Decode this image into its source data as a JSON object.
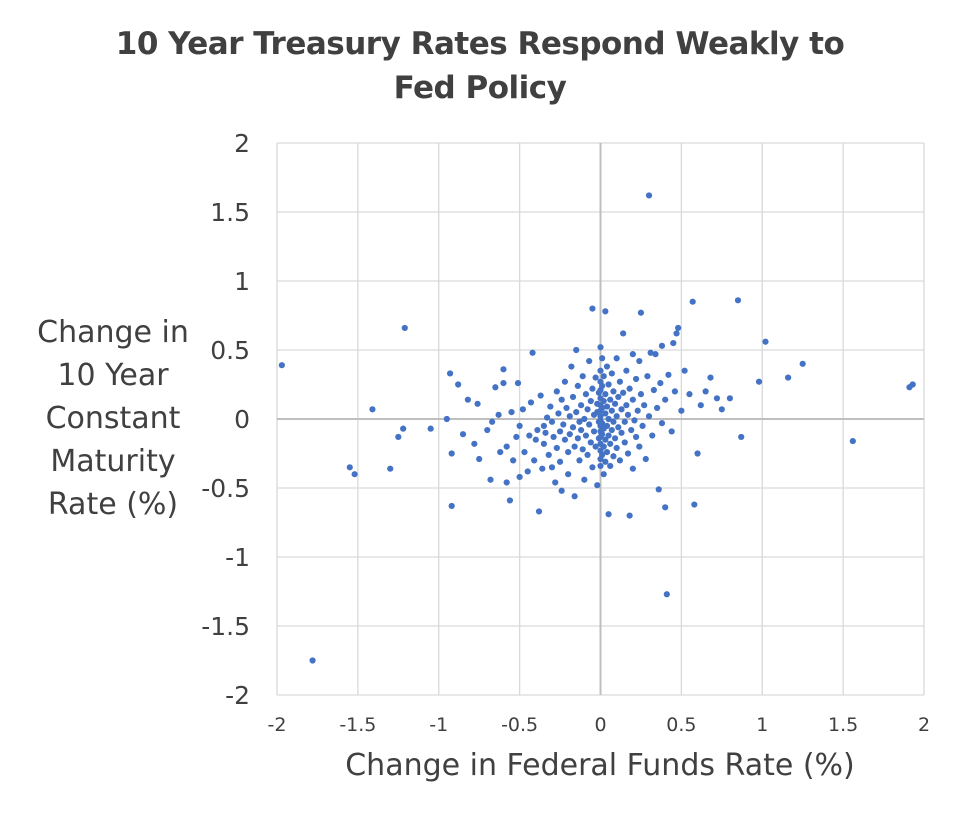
{
  "chart_data": {
    "type": "scatter",
    "title_lines": [
      "10 Year Treasury Rates Respond Weakly to",
      "Fed Policy"
    ],
    "xlabel": "Change in Federal Funds Rate (%)",
    "ylabel_lines": [
      "Change in",
      "10 Year",
      "Constant",
      "Maturity",
      "Rate (%)"
    ],
    "xlim": [
      -2,
      2
    ],
    "ylim": [
      -2,
      2
    ],
    "x_ticks": [
      "-2",
      "-1.5",
      "-1",
      "-0.5",
      "0",
      "0.5",
      "1",
      "1.5",
      "2"
    ],
    "y_ticks": [
      "2",
      "1.5",
      "1",
      "0.5",
      "0",
      "-0.5",
      "-1",
      "-1.5",
      "-2"
    ],
    "x_tick_values": [
      -2,
      -1.5,
      -1,
      -0.5,
      0,
      0.5,
      1,
      1.5,
      2
    ],
    "y_tick_values": [
      2,
      1.5,
      1,
      0.5,
      0,
      -0.5,
      -1,
      -1.5,
      -2
    ],
    "grid": true,
    "marker_color": "#4472C4",
    "points": [
      [
        -1.97,
        0.39
      ],
      [
        -1.78,
        -1.75
      ],
      [
        -1.55,
        -0.35
      ],
      [
        -1.52,
        -0.4
      ],
      [
        -1.41,
        0.07
      ],
      [
        -1.3,
        -0.36
      ],
      [
        -1.25,
        -0.13
      ],
      [
        -1.22,
        -0.07
      ],
      [
        -1.21,
        0.66
      ],
      [
        -1.05,
        -0.07
      ],
      [
        -0.95,
        0.0
      ],
      [
        -0.93,
        0.33
      ],
      [
        -0.92,
        -0.25
      ],
      [
        -0.92,
        -0.63
      ],
      [
        -0.88,
        0.25
      ],
      [
        -0.85,
        -0.11
      ],
      [
        -0.82,
        0.14
      ],
      [
        -0.78,
        -0.18
      ],
      [
        -0.76,
        0.11
      ],
      [
        -0.75,
        -0.29
      ],
      [
        -0.7,
        -0.08
      ],
      [
        -0.68,
        -0.44
      ],
      [
        -0.67,
        -0.02
      ],
      [
        -0.65,
        0.23
      ],
      [
        -0.63,
        0.03
      ],
      [
        -0.62,
        -0.24
      ],
      [
        -0.6,
        0.36
      ],
      [
        -0.6,
        0.26
      ],
      [
        -0.58,
        -0.2
      ],
      [
        -0.58,
        -0.46
      ],
      [
        -0.56,
        -0.59
      ],
      [
        -0.55,
        0.05
      ],
      [
        -0.54,
        -0.3
      ],
      [
        -0.52,
        -0.13
      ],
      [
        -0.51,
        0.26
      ],
      [
        -0.5,
        -0.42
      ],
      [
        -0.5,
        -0.05
      ],
      [
        -0.48,
        0.07
      ],
      [
        -0.47,
        -0.24
      ],
      [
        -0.45,
        -0.38
      ],
      [
        -0.44,
        -0.12
      ],
      [
        -0.43,
        0.12
      ],
      [
        -0.42,
        0.48
      ],
      [
        -0.41,
        -0.3
      ],
      [
        -0.4,
        -0.15
      ],
      [
        -0.39,
        -0.08
      ],
      [
        -0.38,
        -0.67
      ],
      [
        -0.37,
        0.17
      ],
      [
        -0.36,
        -0.36
      ],
      [
        -0.35,
        -0.05
      ],
      [
        -0.35,
        -0.18
      ],
      [
        -0.34,
        -0.1
      ],
      [
        -0.33,
        0.01
      ],
      [
        -0.32,
        -0.26
      ],
      [
        -0.31,
        0.09
      ],
      [
        -0.3,
        -0.35
      ],
      [
        -0.3,
        -0.02
      ],
      [
        -0.29,
        -0.13
      ],
      [
        -0.28,
        -0.46
      ],
      [
        -0.27,
        0.2
      ],
      [
        -0.27,
        -0.21
      ],
      [
        -0.26,
        0.04
      ],
      [
        -0.25,
        -0.09
      ],
      [
        -0.25,
        -0.31
      ],
      [
        -0.24,
        -0.52
      ],
      [
        -0.24,
        0.14
      ],
      [
        -0.23,
        -0.04
      ],
      [
        -0.22,
        -0.15
      ],
      [
        -0.22,
        0.27
      ],
      [
        -0.21,
        0.08
      ],
      [
        -0.2,
        -0.24
      ],
      [
        -0.2,
        -0.4
      ],
      [
        -0.19,
        0.02
      ],
      [
        -0.19,
        -0.11
      ],
      [
        -0.18,
        0.38
      ],
      [
        -0.17,
        -0.06
      ],
      [
        -0.17,
        0.16
      ],
      [
        -0.16,
        -0.2
      ],
      [
        -0.16,
        -0.56
      ],
      [
        -0.15,
        0.05
      ],
      [
        -0.15,
        0.5
      ],
      [
        -0.14,
        -0.14
      ],
      [
        -0.14,
        0.24
      ],
      [
        -0.13,
        -0.02
      ],
      [
        -0.13,
        -0.3
      ],
      [
        -0.12,
        0.1
      ],
      [
        -0.12,
        -0.08
      ],
      [
        -0.11,
        0.31
      ],
      [
        -0.11,
        -0.22
      ],
      [
        -0.1,
        0.0
      ],
      [
        -0.1,
        -0.44
      ],
      [
        -0.09,
        0.18
      ],
      [
        -0.09,
        -0.12
      ],
      [
        -0.08,
        0.07
      ],
      [
        -0.08,
        -0.26
      ],
      [
        -0.07,
        0.42
      ],
      [
        -0.07,
        -0.04
      ],
      [
        -0.06,
        0.13
      ],
      [
        -0.06,
        -0.17
      ],
      [
        -0.05,
        0.22
      ],
      [
        -0.05,
        -0.35
      ],
      [
        -0.05,
        0.8
      ],
      [
        -0.04,
        0.03
      ],
      [
        -0.04,
        -0.09
      ],
      [
        -0.03,
        0.3
      ],
      [
        -0.03,
        -0.2
      ],
      [
        -0.02,
        0.11
      ],
      [
        -0.02,
        -0.48
      ],
      [
        -0.02,
        0.05
      ],
      [
        -0.01,
        -0.02
      ],
      [
        -0.01,
        0.19
      ],
      [
        -0.01,
        -0.14
      ],
      [
        0.0,
        0.52
      ],
      [
        0.0,
        0.35
      ],
      [
        0.0,
        0.27
      ],
      [
        0.0,
        0.21
      ],
      [
        0.0,
        0.15
      ],
      [
        0.0,
        0.1
      ],
      [
        0.0,
        0.06
      ],
      [
        0.0,
        0.02
      ],
      [
        0.0,
        -0.01
      ],
      [
        0.0,
        -0.05
      ],
      [
        0.0,
        -0.09
      ],
      [
        0.0,
        -0.13
      ],
      [
        0.0,
        -0.18
      ],
      [
        0.0,
        -0.23
      ],
      [
        0.0,
        -0.29
      ],
      [
        0.0,
        -0.34
      ],
      [
        0.01,
        0.44
      ],
      [
        0.01,
        0.24
      ],
      [
        0.01,
        0.08
      ],
      [
        0.01,
        -0.03
      ],
      [
        0.01,
        -0.11
      ],
      [
        0.01,
        -0.26
      ],
      [
        0.02,
        0.31
      ],
      [
        0.02,
        0.13
      ],
      [
        0.02,
        -0.07
      ],
      [
        0.02,
        -0.2
      ],
      [
        0.02,
        -0.4
      ],
      [
        0.03,
        0.18
      ],
      [
        0.03,
        0.04
      ],
      [
        0.03,
        -0.15
      ],
      [
        0.03,
        -0.31
      ],
      [
        0.03,
        0.78
      ],
      [
        0.04,
        0.38
      ],
      [
        0.04,
        0.09
      ],
      [
        0.04,
        -0.05
      ],
      [
        0.04,
        -0.24
      ],
      [
        0.05,
        0.25
      ],
      [
        0.05,
        0.0
      ],
      [
        0.05,
        -0.12
      ],
      [
        0.05,
        -0.69
      ],
      [
        0.06,
        0.14
      ],
      [
        0.06,
        -0.18
      ],
      [
        0.06,
        -0.34
      ],
      [
        0.07,
        0.06
      ],
      [
        0.07,
        -0.08
      ],
      [
        0.07,
        0.33
      ],
      [
        0.08,
        0.2
      ],
      [
        0.08,
        -0.02
      ],
      [
        0.08,
        -0.27
      ],
      [
        0.09,
        0.11
      ],
      [
        0.09,
        -0.14
      ],
      [
        0.1,
        0.02
      ],
      [
        0.1,
        -0.21
      ],
      [
        0.1,
        0.44
      ],
      [
        0.11,
        0.16
      ],
      [
        0.11,
        -0.06
      ],
      [
        0.12,
        0.27
      ],
      [
        0.12,
        -0.3
      ],
      [
        0.13,
        0.07
      ],
      [
        0.13,
        -0.1
      ],
      [
        0.14,
        0.62
      ],
      [
        0.14,
        0.19
      ],
      [
        0.15,
        -0.02
      ],
      [
        0.15,
        -0.17
      ],
      [
        0.16,
        0.35
      ],
      [
        0.16,
        0.1
      ],
      [
        0.17,
        -0.25
      ],
      [
        0.17,
        0.03
      ],
      [
        0.18,
        0.22
      ],
      [
        0.18,
        -0.7
      ],
      [
        0.19,
        -0.08
      ],
      [
        0.2,
        0.47
      ],
      [
        0.2,
        0.14
      ],
      [
        0.2,
        -0.36
      ],
      [
        0.21,
        -0.01
      ],
      [
        0.22,
        0.29
      ],
      [
        0.22,
        -0.13
      ],
      [
        0.23,
        0.06
      ],
      [
        0.24,
        0.42
      ],
      [
        0.24,
        -0.2
      ],
      [
        0.25,
        0.77
      ],
      [
        0.25,
        0.18
      ],
      [
        0.26,
        -0.05
      ],
      [
        0.27,
        0.1
      ],
      [
        0.28,
        -0.29
      ],
      [
        0.29,
        0.31
      ],
      [
        0.3,
        1.62
      ],
      [
        0.3,
        0.02
      ],
      [
        0.31,
        0.48
      ],
      [
        0.32,
        -0.12
      ],
      [
        0.33,
        0.21
      ],
      [
        0.34,
        0.47
      ],
      [
        0.35,
        0.08
      ],
      [
        0.36,
        -0.51
      ],
      [
        0.37,
        0.26
      ],
      [
        0.38,
        0.53
      ],
      [
        0.38,
        -0.03
      ],
      [
        0.4,
        0.14
      ],
      [
        0.4,
        -0.64
      ],
      [
        0.41,
        -1.27
      ],
      [
        0.42,
        0.32
      ],
      [
        0.44,
        -0.09
      ],
      [
        0.45,
        0.55
      ],
      [
        0.46,
        0.2
      ],
      [
        0.47,
        0.62
      ],
      [
        0.48,
        0.66
      ],
      [
        0.5,
        0.06
      ],
      [
        0.52,
        0.35
      ],
      [
        0.55,
        0.18
      ],
      [
        0.57,
        0.85
      ],
      [
        0.58,
        -0.62
      ],
      [
        0.6,
        -0.25
      ],
      [
        0.62,
        0.1
      ],
      [
        0.65,
        0.2
      ],
      [
        0.68,
        0.3
      ],
      [
        0.72,
        0.15
      ],
      [
        0.75,
        0.07
      ],
      [
        0.8,
        0.15
      ],
      [
        0.85,
        0.86
      ],
      [
        0.87,
        -0.13
      ],
      [
        0.98,
        0.27
      ],
      [
        1.02,
        0.56
      ],
      [
        1.16,
        0.3
      ],
      [
        1.25,
        0.4
      ],
      [
        1.56,
        -0.16
      ],
      [
        1.91,
        0.23
      ],
      [
        1.93,
        0.25
      ]
    ]
  }
}
